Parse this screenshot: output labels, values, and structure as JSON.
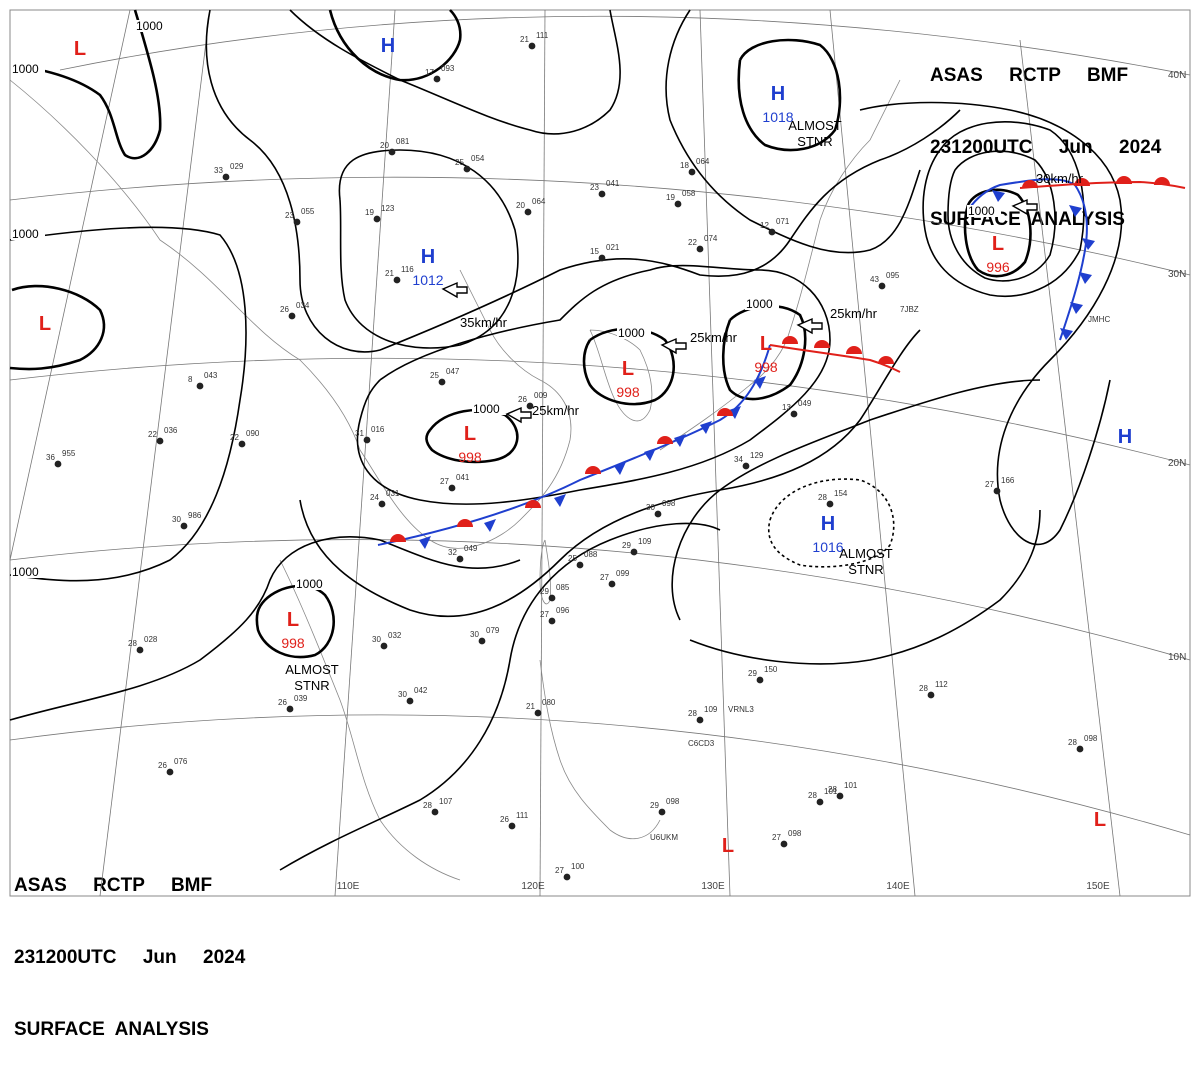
{
  "header": {
    "line1": "ASAS     RCTP     BMF",
    "line2": "231200UTC     Jun     2024",
    "line3": "SURFACE  ANALYSIS"
  },
  "colors": {
    "high": "#1f3fcf",
    "low": "#e0201a",
    "isobar": "#000000",
    "cold_front": "#1f3fcf",
    "warm_front": "#e0201a",
    "grid": "#777777",
    "coast": "#888888"
  },
  "longitude_labels": [
    "110E",
    "120E",
    "130E",
    "140E",
    "150E"
  ],
  "latitude_labels": [
    "40N",
    "30N",
    "20N",
    "10N"
  ],
  "isobar_labels": [
    "1000",
    "1000",
    "1000",
    "1000",
    "1000",
    "1000",
    "1000",
    "1000",
    "1000"
  ],
  "pressure_centers": [
    {
      "type": "H",
      "value": ""
    },
    {
      "type": "H",
      "value": "1018"
    },
    {
      "type": "H",
      "value": "1012"
    },
    {
      "type": "H",
      "value": "1016"
    },
    {
      "type": "H",
      "value": ""
    },
    {
      "type": "L",
      "value": ""
    },
    {
      "type": "L",
      "value": ""
    },
    {
      "type": "L",
      "value": "996"
    },
    {
      "type": "L",
      "value": "998"
    },
    {
      "type": "L",
      "value": "998"
    },
    {
      "type": "L",
      "value": "998"
    },
    {
      "type": "L",
      "value": "998"
    },
    {
      "type": "L",
      "value": ""
    },
    {
      "type": "L",
      "value": ""
    }
  ],
  "notes": [
    "ALMOST STNR",
    "ALMOST STNR",
    "ALMOST STNR"
  ],
  "motions": [
    "30km/hr",
    "35km/hr",
    "25km/hr",
    "25km/hr",
    "25km/hr"
  ],
  "station_callsigns": [
    "7JBZ",
    "JMHC",
    "VRNL3",
    "C6CD3",
    "U6UKM"
  ],
  "station_plots": [
    "21 111",
    "17 093",
    "20 081",
    "25 054",
    "23 055",
    "19 123",
    "21 116",
    "26 034",
    "20 064",
    "23 041",
    "19 058",
    "15 021",
    "22 074",
    "18 064",
    "12 071",
    "43 095",
    "8 043",
    "33 029",
    "25 047",
    "26 009",
    "31 016",
    "22 036",
    "22 090",
    "36 955",
    "27 041",
    "24 031",
    "30 986",
    "32 049",
    "30 098",
    "29 109",
    "25 088",
    "27 099",
    "28 101",
    "26 111",
    "27 100",
    "29 098",
    "28 107",
    "26 076",
    "26 039",
    "30 042",
    "28 028",
    "27 166",
    "28 098",
    "28 154",
    "13 049",
    "34 129",
    "29 150",
    "28 109",
    "28 101",
    "28 112",
    "27 098",
    "30 032",
    "30 079",
    "27 096",
    "29 085",
    "21 080"
  ]
}
